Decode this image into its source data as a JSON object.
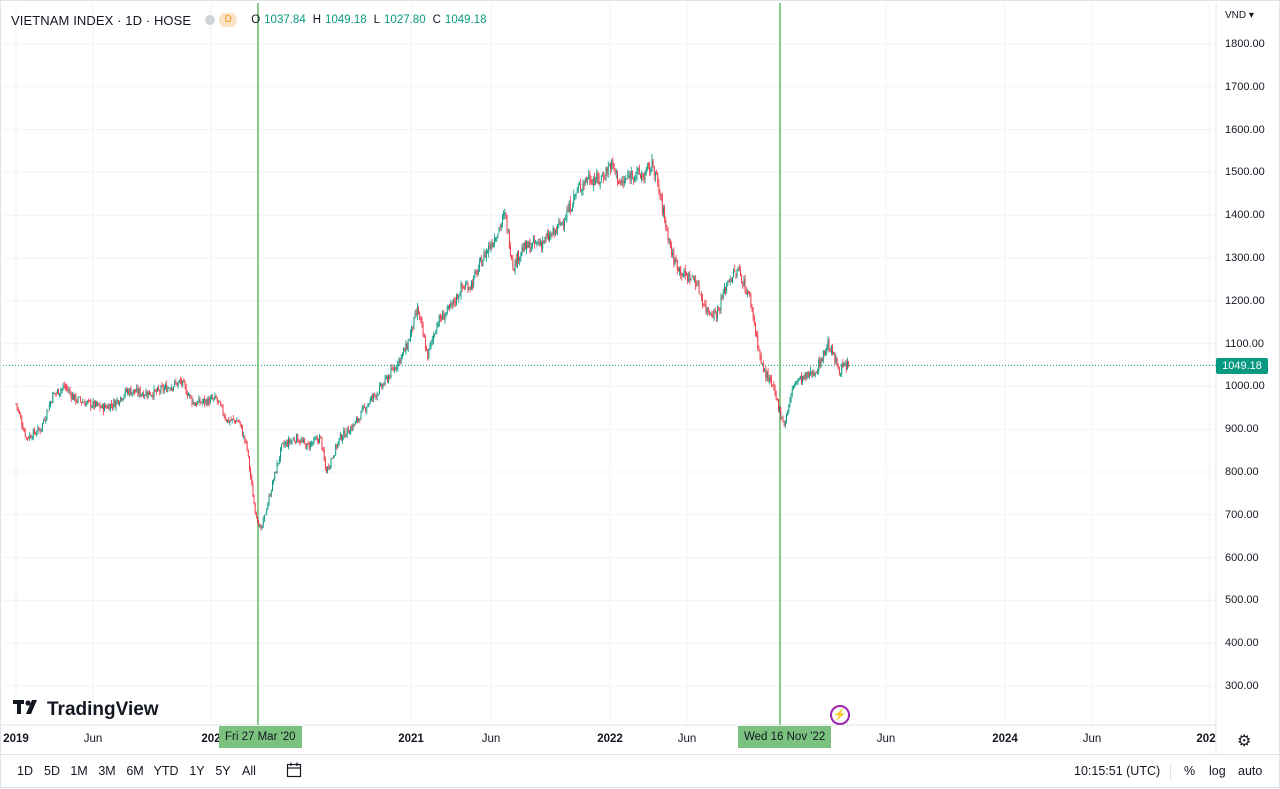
{
  "header": {
    "symbol": "VIETNAM INDEX · 1D · HOSE",
    "interval_badge": "D",
    "ohlc": [
      {
        "key": "O",
        "value": "1037.84"
      },
      {
        "key": "H",
        "value": "1049.18"
      },
      {
        "key": "L",
        "value": "1027.80"
      },
      {
        "key": "C",
        "value": "1049.18"
      }
    ]
  },
  "axis": {
    "currency": "VND",
    "y_labels": [
      "1800.00",
      "1700.00",
      "1600.00",
      "1500.00",
      "1400.00",
      "1300.00",
      "1200.00",
      "1100.00",
      "1000.00",
      "900.00",
      "800.00",
      "700.00",
      "600.00",
      "500.00",
      "400.00",
      "300.00"
    ],
    "x_labels": [
      {
        "text": "2019",
        "bold": true
      },
      {
        "text": "Jun",
        "bold": false
      },
      {
        "text": "202",
        "bold": true
      },
      {
        "text": "2021",
        "bold": true
      },
      {
        "text": "Jun",
        "bold": false
      },
      {
        "text": "2022",
        "bold": true
      },
      {
        "text": "Jun",
        "bold": false
      },
      {
        "text": "Jun",
        "bold": false
      },
      {
        "text": "2024",
        "bold": true
      },
      {
        "text": "Jun",
        "bold": false
      },
      {
        "text": "202",
        "bold": true
      }
    ],
    "last_price": "1049.18"
  },
  "markers": [
    {
      "label": "Fri 27 Mar '20",
      "price": 660
    },
    {
      "label": "Wed 16 Nov '22",
      "price": 911
    }
  ],
  "brand": {
    "name": "TradingView"
  },
  "bottom_bar": {
    "ranges": [
      "1D",
      "5D",
      "1M",
      "3M",
      "6M",
      "YTD",
      "1Y",
      "5Y",
      "All"
    ],
    "time": "10:15:51 (UTC)",
    "options": [
      "%",
      "log",
      "auto"
    ]
  },
  "chart_data": {
    "type": "line",
    "title": "VIETNAM INDEX · 1D · HOSE",
    "ylim": [
      220,
      1840
    ],
    "grid": true,
    "series": [
      {
        "x": [
          "2019-01-01",
          "2019-01-20",
          "2019-02-15",
          "2019-03-10",
          "2019-04-01",
          "2019-04-20",
          "2019-05-15",
          "2019-06-10",
          "2019-07-01",
          "2019-07-25",
          "2019-08-20",
          "2019-09-15",
          "2019-10-10",
          "2019-11-01",
          "2019-11-25",
          "2019-12-15",
          "2020-01-05",
          "2020-01-25",
          "2020-02-15",
          "2020-03-01",
          "2020-03-15",
          "2020-03-27",
          "2020-04-15",
          "2020-05-05",
          "2020-06-01",
          "2020-06-20",
          "2020-07-15",
          "2020-07-25",
          "2020-08-20",
          "2020-09-15",
          "2020-10-10",
          "2020-11-05",
          "2020-12-01",
          "2020-12-20",
          "2021-01-10",
          "2021-01-28",
          "2021-02-15",
          "2021-03-10",
          "2021-04-01",
          "2021-04-20",
          "2021-05-10",
          "2021-06-01",
          "2021-06-20",
          "2021-07-05",
          "2021-07-20",
          "2021-08-10",
          "2021-09-01",
          "2021-09-20",
          "2021-10-10",
          "2021-11-01",
          "2021-11-20",
          "2021-12-10",
          "2022-01-01",
          "2022-01-20",
          "2022-02-10",
          "2022-03-01",
          "2022-03-20",
          "2022-04-05",
          "2022-04-25",
          "2022-05-15",
          "2022-06-05",
          "2022-06-25",
          "2022-07-15",
          "2022-08-05",
          "2022-08-25",
          "2022-09-15",
          "2022-10-05",
          "2022-10-25",
          "2022-11-16",
          "2022-12-05",
          "2022-12-25",
          "2023-01-15",
          "2023-02-05",
          "2023-02-25",
          "2023-03-15"
        ],
        "values": [
          960,
          880,
          900,
          980,
          1000,
          970,
          960,
          950,
          960,
          990,
          985,
          985,
          1000,
          1010,
          960,
          965,
          970,
          920,
          920,
          860,
          720,
          660,
          760,
          860,
          880,
          860,
          880,
          800,
          880,
          910,
          960,
          1000,
          1050,
          1090,
          1180,
          1070,
          1150,
          1180,
          1230,
          1240,
          1300,
          1350,
          1400,
          1280,
          1320,
          1330,
          1340,
          1360,
          1400,
          1460,
          1490,
          1480,
          1520,
          1470,
          1500,
          1490,
          1520,
          1420,
          1300,
          1260,
          1250,
          1180,
          1170,
          1250,
          1270,
          1200,
          1050,
          1000,
          911,
          1010,
          1020,
          1040,
          1100,
          1040,
          1049
        ]
      }
    ]
  }
}
